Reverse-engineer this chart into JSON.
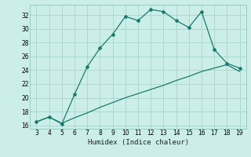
{
  "xlabel": "Humidex (Indice chaleur)",
  "ylabel": "",
  "bg_color": "#cceee8",
  "grid_color": "#aad8d0",
  "line_color": "#1a7a6e",
  "xlim": [
    2.5,
    19.5
  ],
  "ylim": [
    15.5,
    33.5
  ],
  "xticks": [
    3,
    4,
    5,
    6,
    7,
    8,
    9,
    10,
    11,
    12,
    13,
    14,
    15,
    16,
    17,
    18,
    19
  ],
  "yticks": [
    16,
    18,
    20,
    22,
    24,
    26,
    28,
    30,
    32
  ],
  "curve1_x": [
    3,
    4,
    5,
    6,
    7,
    8,
    9,
    10,
    11,
    12,
    13,
    14,
    15,
    16,
    17,
    18,
    19
  ],
  "curve1_y": [
    16.5,
    17.2,
    16.2,
    20.5,
    24.5,
    27.2,
    29.2,
    31.8,
    31.2,
    32.8,
    32.5,
    31.2,
    30.2,
    32.5,
    27.0,
    25.0,
    24.3
  ],
  "curve2_x": [
    3,
    4,
    5,
    6,
    7,
    8,
    9,
    10,
    11,
    12,
    13,
    14,
    15,
    16,
    17,
    18,
    19
  ],
  "curve2_y": [
    16.5,
    17.2,
    16.3,
    17.1,
    17.8,
    18.6,
    19.3,
    20.0,
    20.6,
    21.2,
    21.8,
    22.5,
    23.1,
    23.8,
    24.3,
    24.8,
    23.8
  ]
}
